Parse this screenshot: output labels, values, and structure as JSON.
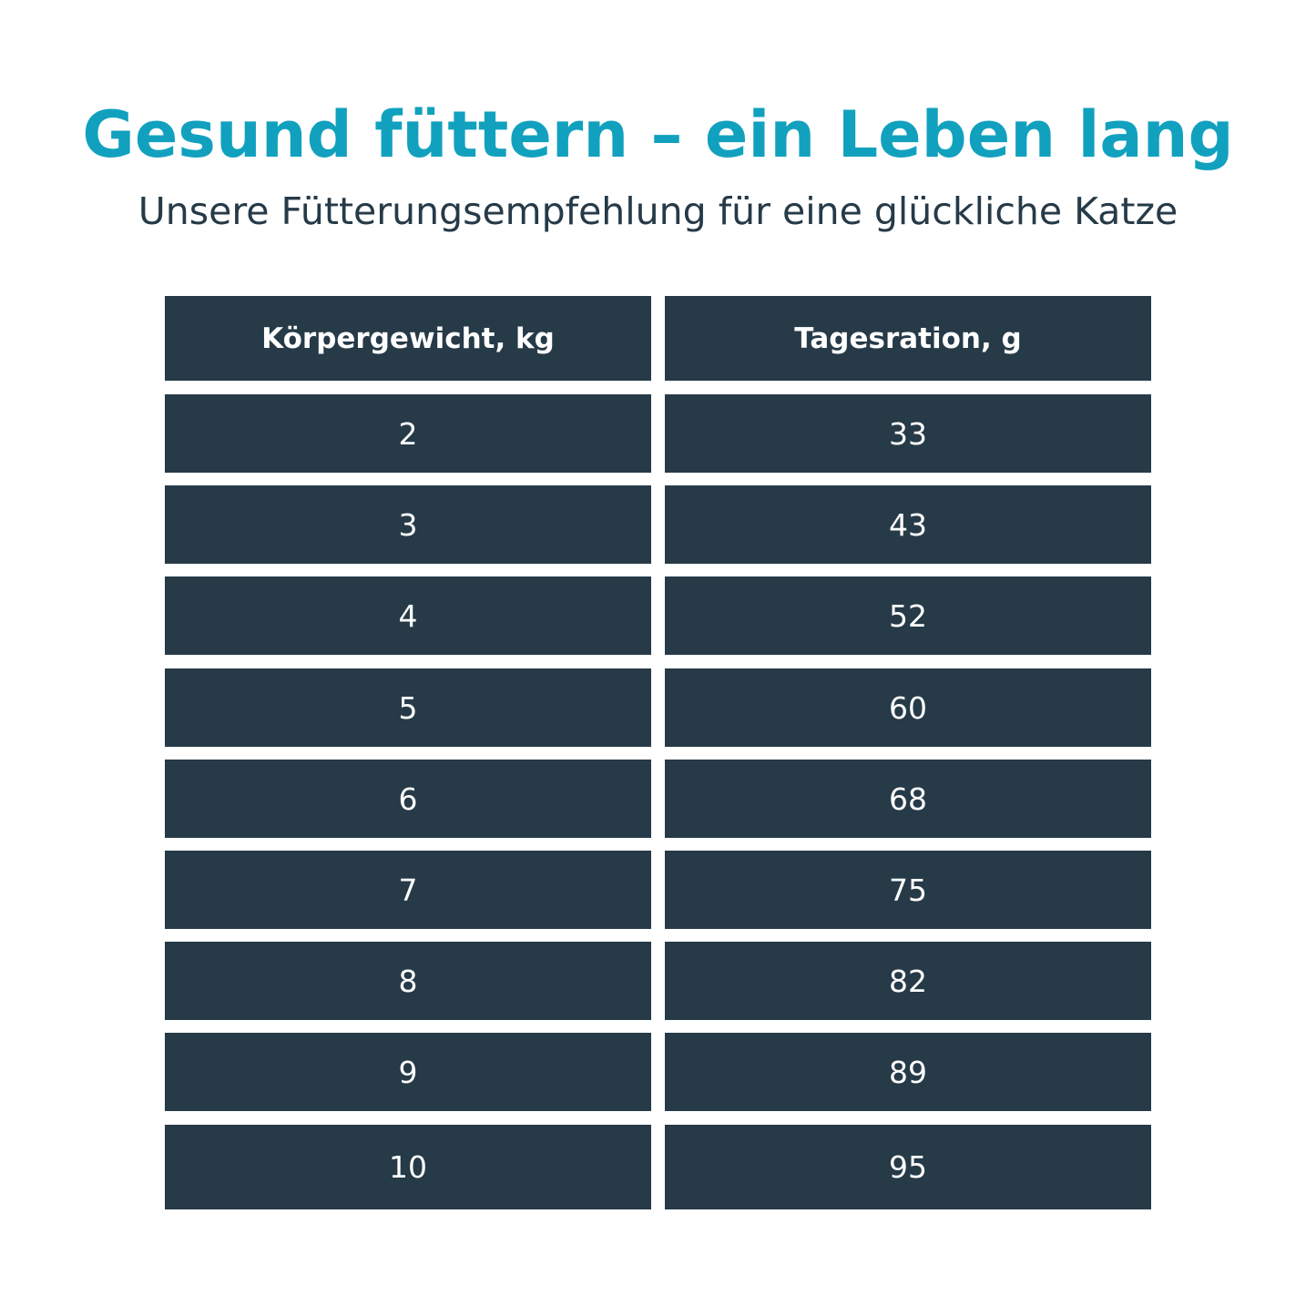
{
  "title": "Gesund füttern – ein Leben lang",
  "subtitle": "Unsere Fütterungsempfehlung für eine glückliche Katze",
  "colors": {
    "title": "#11a1bf",
    "cell_bg": "#263a48",
    "cell_text": "#ffffff"
  },
  "table": {
    "headers": [
      "Körpergewicht, kg",
      "Tagesration, g"
    ],
    "rows": [
      [
        "2",
        "33"
      ],
      [
        "3",
        "43"
      ],
      [
        "4",
        "52"
      ],
      [
        "5",
        "60"
      ],
      [
        "6",
        "68"
      ],
      [
        "7",
        "75"
      ],
      [
        "8",
        "82"
      ],
      [
        "9",
        "89"
      ],
      [
        "10",
        "95"
      ]
    ]
  }
}
